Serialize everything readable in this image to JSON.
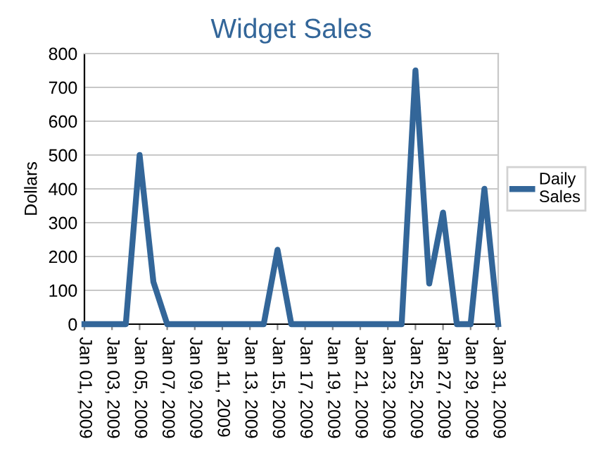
{
  "chart_data": {
    "type": "line",
    "title": "Widget Sales",
    "ylabel": "Dollars",
    "x": [
      "2009-01-01",
      "2009-01-02",
      "2009-01-03",
      "2009-01-04",
      "2009-01-05",
      "2009-01-06",
      "2009-01-07",
      "2009-01-08",
      "2009-01-09",
      "2009-01-10",
      "2009-01-11",
      "2009-01-12",
      "2009-01-13",
      "2009-01-14",
      "2009-01-15",
      "2009-01-16",
      "2009-01-17",
      "2009-01-18",
      "2009-01-19",
      "2009-01-20",
      "2009-01-21",
      "2009-01-22",
      "2009-01-23",
      "2009-01-24",
      "2009-01-25",
      "2009-01-26",
      "2009-01-27",
      "2009-01-28",
      "2009-01-29",
      "2009-01-30",
      "2009-01-31"
    ],
    "series": [
      {
        "name": "Daily\nSales",
        "color": "#336699",
        "values": [
          0,
          0,
          0,
          0,
          500,
          125,
          0,
          0,
          0,
          0,
          0,
          0,
          0,
          0,
          220,
          0,
          0,
          0,
          0,
          0,
          0,
          0,
          0,
          0,
          750,
          120,
          330,
          0,
          0,
          400,
          0
        ]
      }
    ],
    "xlim": [
      "2009-01-01",
      "2009-01-31"
    ],
    "xticks": [
      {
        "value": "2009-01-01",
        "label": "Jan 01, 2009"
      },
      {
        "value": "2009-01-03",
        "label": "Jan 03, 2009"
      },
      {
        "value": "2009-01-05",
        "label": "Jan 05, 2009"
      },
      {
        "value": "2009-01-07",
        "label": "Jan 07, 2009"
      },
      {
        "value": "2009-01-09",
        "label": "Jan 09, 2009"
      },
      {
        "value": "2009-01-11",
        "label": "Jan 11, 2009"
      },
      {
        "value": "2009-01-13",
        "label": "Jan 13, 2009"
      },
      {
        "value": "2009-01-15",
        "label": "Jan 15, 2009"
      },
      {
        "value": "2009-01-17",
        "label": "Jan 17, 2009"
      },
      {
        "value": "2009-01-19",
        "label": "Jan 19, 2009"
      },
      {
        "value": "2009-01-21",
        "label": "Jan 21, 2009"
      },
      {
        "value": "2009-01-23",
        "label": "Jan 23, 2009"
      },
      {
        "value": "2009-01-25",
        "label": "Jan 25, 2009"
      },
      {
        "value": "2009-01-27",
        "label": "Jan 27, 2009"
      },
      {
        "value": "2009-01-29",
        "label": "Jan 29, 2009"
      },
      {
        "value": "2009-01-31",
        "label": "Jan 31, 2009"
      }
    ],
    "ylim": [
      0,
      800
    ],
    "yticks": [
      0,
      100,
      200,
      300,
      400,
      500,
      600,
      700,
      800
    ],
    "grid": "y",
    "legend": "right",
    "marker": "none",
    "line_style": "solid"
  }
}
